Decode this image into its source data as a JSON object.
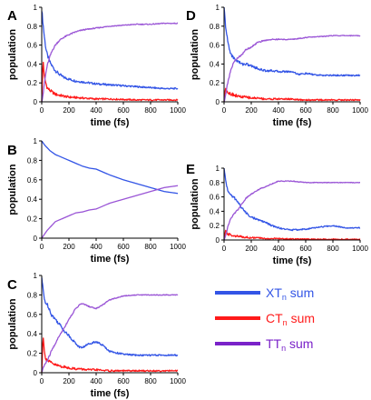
{
  "chart_data": [
    {
      "panel": "A",
      "type": "line",
      "xlabel": "time (fs)",
      "ylabel": "population",
      "xlim": [
        0,
        1000
      ],
      "ylim": [
        0,
        1
      ],
      "xticks": [
        0,
        200,
        400,
        600,
        800,
        1000
      ],
      "yticks": [
        0,
        0.2,
        0.4,
        0.6,
        0.8,
        1
      ],
      "x": [
        0,
        10,
        20,
        30,
        40,
        60,
        80,
        100,
        130,
        160,
        200,
        250,
        300,
        350,
        400,
        500,
        600,
        700,
        800,
        900,
        1000
      ],
      "series": [
        {
          "key": "xt",
          "values": [
            0.98,
            0.82,
            0.68,
            0.57,
            0.5,
            0.42,
            0.37,
            0.33,
            0.29,
            0.26,
            0.24,
            0.22,
            0.21,
            0.2,
            0.19,
            0.18,
            0.17,
            0.16,
            0.15,
            0.14,
            0.14
          ]
        },
        {
          "key": "ct",
          "values": [
            0.0,
            0.45,
            0.25,
            0.2,
            0.15,
            0.12,
            0.1,
            0.08,
            0.07,
            0.06,
            0.05,
            0.045,
            0.04,
            0.035,
            0.03,
            0.03,
            0.025,
            0.02,
            0.02,
            0.02,
            0.02
          ]
        },
        {
          "key": "tt",
          "values": [
            0.0,
            0.08,
            0.2,
            0.3,
            0.38,
            0.48,
            0.55,
            0.6,
            0.65,
            0.68,
            0.71,
            0.74,
            0.76,
            0.77,
            0.78,
            0.8,
            0.81,
            0.82,
            0.82,
            0.83,
            0.83
          ]
        }
      ]
    },
    {
      "panel": "B",
      "type": "line",
      "xlabel": "time (fs)",
      "ylabel": "population",
      "xlim": [
        0,
        1000
      ],
      "ylim": [
        0,
        1
      ],
      "xticks": [
        0,
        200,
        400,
        600,
        800,
        1000
      ],
      "yticks": [
        0,
        0.2,
        0.4,
        0.6,
        0.8,
        1
      ],
      "x": [
        0,
        10,
        20,
        40,
        60,
        80,
        100,
        150,
        200,
        250,
        300,
        350,
        400,
        450,
        500,
        600,
        700,
        800,
        900,
        1000
      ],
      "series": [
        {
          "key": "xt",
          "values": [
            1.0,
            0.98,
            0.96,
            0.93,
            0.9,
            0.88,
            0.86,
            0.83,
            0.8,
            0.77,
            0.74,
            0.72,
            0.71,
            0.68,
            0.65,
            0.6,
            0.56,
            0.52,
            0.48,
            0.46
          ]
        },
        {
          "key": "tt",
          "values": [
            0.0,
            0.02,
            0.04,
            0.08,
            0.11,
            0.14,
            0.17,
            0.2,
            0.23,
            0.26,
            0.27,
            0.29,
            0.3,
            0.33,
            0.36,
            0.4,
            0.44,
            0.48,
            0.52,
            0.54
          ]
        }
      ]
    },
    {
      "panel": "C",
      "type": "line",
      "xlabel": "time (fs)",
      "ylabel": "population",
      "xlim": [
        0,
        1000
      ],
      "ylim": [
        0,
        1
      ],
      "xticks": [
        0,
        200,
        400,
        600,
        800,
        1000
      ],
      "yticks": [
        0,
        0.2,
        0.4,
        0.6,
        0.8,
        1
      ],
      "x": [
        0,
        10,
        20,
        30,
        50,
        70,
        100,
        130,
        160,
        200,
        250,
        280,
        300,
        350,
        400,
        450,
        500,
        600,
        700,
        800,
        900,
        1000
      ],
      "series": [
        {
          "key": "xt",
          "values": [
            0.98,
            0.85,
            0.75,
            0.72,
            0.68,
            0.6,
            0.55,
            0.5,
            0.44,
            0.38,
            0.3,
            0.26,
            0.26,
            0.3,
            0.32,
            0.28,
            0.22,
            0.19,
            0.18,
            0.18,
            0.18,
            0.18
          ]
        },
        {
          "key": "ct",
          "values": [
            0.0,
            0.4,
            0.2,
            0.15,
            0.12,
            0.1,
            0.08,
            0.07,
            0.06,
            0.05,
            0.04,
            0.04,
            0.035,
            0.03,
            0.03,
            0.025,
            0.02,
            0.02,
            0.02,
            0.02,
            0.02,
            0.02
          ]
        },
        {
          "key": "tt",
          "values": [
            0.0,
            0.05,
            0.08,
            0.1,
            0.15,
            0.22,
            0.3,
            0.38,
            0.45,
            0.55,
            0.66,
            0.7,
            0.71,
            0.68,
            0.66,
            0.7,
            0.75,
            0.79,
            0.8,
            0.8,
            0.8,
            0.8
          ]
        }
      ]
    },
    {
      "panel": "D",
      "type": "line",
      "xlabel": "time (fs)",
      "ylabel": "population",
      "xlim": [
        0,
        1000
      ],
      "ylim": [
        0,
        1
      ],
      "xticks": [
        0,
        200,
        400,
        600,
        800,
        1000
      ],
      "yticks": [
        0,
        0.2,
        0.4,
        0.6,
        0.8,
        1
      ],
      "x": [
        0,
        10,
        20,
        30,
        40,
        60,
        80,
        100,
        130,
        160,
        200,
        250,
        300,
        350,
        400,
        450,
        500,
        550,
        600,
        700,
        800,
        900,
        1000
      ],
      "series": [
        {
          "key": "xt",
          "values": [
            1.0,
            0.82,
            0.7,
            0.62,
            0.55,
            0.48,
            0.45,
            0.43,
            0.4,
            0.4,
            0.38,
            0.35,
            0.33,
            0.33,
            0.32,
            0.32,
            0.32,
            0.29,
            0.3,
            0.28,
            0.28,
            0.28,
            0.28
          ]
        },
        {
          "key": "ct",
          "values": [
            0.0,
            0.15,
            0.12,
            0.1,
            0.09,
            0.08,
            0.07,
            0.06,
            0.05,
            0.05,
            0.04,
            0.04,
            0.03,
            0.03,
            0.03,
            0.03,
            0.03,
            0.02,
            0.02,
            0.02,
            0.02,
            0.02,
            0.02
          ]
        },
        {
          "key": "tt",
          "values": [
            0.0,
            0.05,
            0.15,
            0.22,
            0.28,
            0.38,
            0.44,
            0.46,
            0.5,
            0.55,
            0.58,
            0.63,
            0.65,
            0.66,
            0.66,
            0.66,
            0.66,
            0.67,
            0.68,
            0.69,
            0.7,
            0.7,
            0.7
          ]
        }
      ]
    },
    {
      "panel": "E",
      "type": "line",
      "xlabel": "time (fs)",
      "ylabel": "population",
      "xlim": [
        0,
        1000
      ],
      "ylim": [
        0,
        1
      ],
      "xticks": [
        0,
        200,
        400,
        600,
        800,
        1000
      ],
      "yticks": [
        0,
        0.2,
        0.4,
        0.6,
        0.8,
        1
      ],
      "x": [
        0,
        10,
        20,
        30,
        50,
        80,
        100,
        130,
        160,
        200,
        250,
        300,
        350,
        400,
        450,
        500,
        600,
        700,
        800,
        900,
        1000
      ],
      "series": [
        {
          "key": "xt",
          "values": [
            1.0,
            0.85,
            0.75,
            0.68,
            0.62,
            0.58,
            0.53,
            0.45,
            0.38,
            0.32,
            0.28,
            0.25,
            0.2,
            0.17,
            0.15,
            0.14,
            0.15,
            0.18,
            0.2,
            0.17,
            0.17
          ]
        },
        {
          "key": "ct",
          "values": [
            0.0,
            0.12,
            0.1,
            0.08,
            0.07,
            0.06,
            0.05,
            0.045,
            0.04,
            0.03,
            0.03,
            0.02,
            0.02,
            0.02,
            0.015,
            0.015,
            0.01,
            0.01,
            0.01,
            0.01,
            0.01
          ]
        },
        {
          "key": "tt",
          "values": [
            0.0,
            0.06,
            0.12,
            0.2,
            0.3,
            0.38,
            0.42,
            0.5,
            0.58,
            0.64,
            0.7,
            0.74,
            0.78,
            0.82,
            0.82,
            0.82,
            0.8,
            0.8,
            0.8,
            0.8,
            0.8
          ]
        }
      ]
    }
  ],
  "legend": [
    {
      "key": "xt",
      "text": "XT",
      "sub": "n",
      "suffix": " sum",
      "color": "#3355e6"
    },
    {
      "key": "ct",
      "text": "CT",
      "sub": "n",
      "suffix": " sum",
      "color": "#ff1a1a"
    },
    {
      "key": "tt",
      "text": "TT",
      "sub": "n",
      "suffix": " sum",
      "color": "#7a22c9"
    }
  ],
  "colors": {
    "xt": "#3355e6",
    "ct": "#ff1a1a",
    "tt": "#9a55d6",
    "axis": "#000000"
  }
}
